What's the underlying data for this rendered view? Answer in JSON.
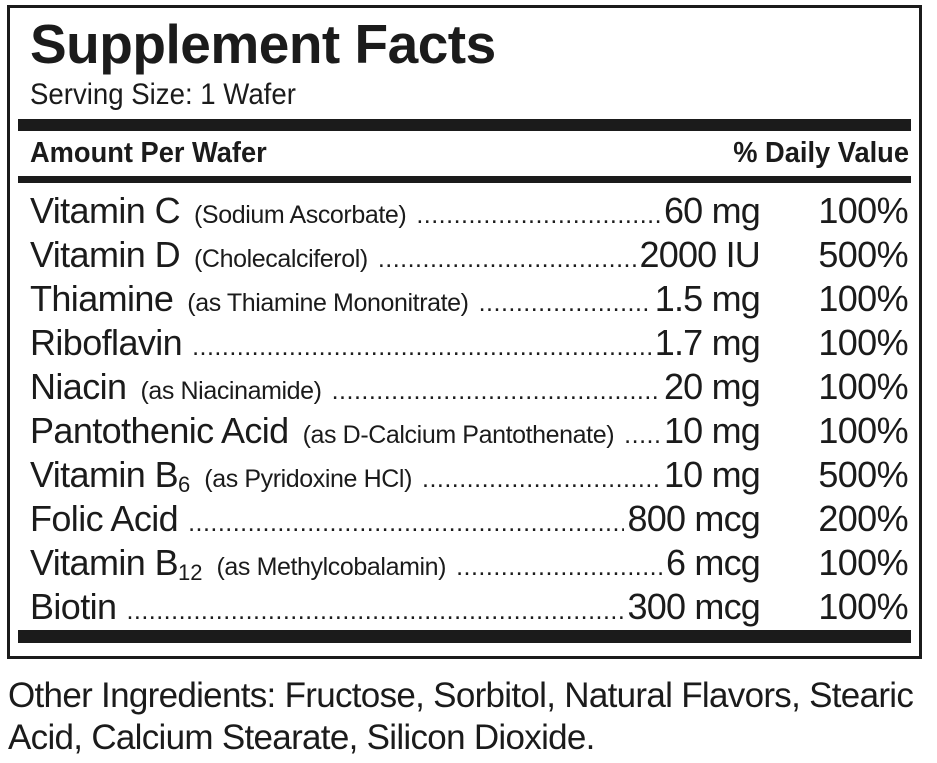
{
  "title": "Supplement Facts",
  "serving_size": "Serving Size:  1 Wafer",
  "header": {
    "amount_label": "Amount Per Wafer",
    "dv_label": "% Daily Value"
  },
  "nutrients": [
    {
      "name": "Vitamin C",
      "sub": "",
      "detail": "(Sodium Ascorbate)",
      "amount": "60 mg",
      "dv": "100%"
    },
    {
      "name": "Vitamin D",
      "sub": "",
      "detail": "(Cholecalciferol)",
      "amount": "2000 IU",
      "dv": "500%"
    },
    {
      "name": "Thiamine",
      "sub": "",
      "detail": "(as Thiamine Mononitrate)",
      "amount": "1.5 mg",
      "dv": "100%"
    },
    {
      "name": "Riboflavin",
      "sub": "",
      "detail": "",
      "amount": "1.7 mg",
      "dv": "100%"
    },
    {
      "name": "Niacin",
      "sub": "",
      "detail": "(as Niacinamide)",
      "amount": "20 mg",
      "dv": "100%"
    },
    {
      "name": "Pantothenic Acid",
      "sub": "",
      "detail": "(as D-Calcium Pantothenate)",
      "amount": "10 mg",
      "dv": "100%"
    },
    {
      "name": "Vitamin B",
      "sub": "6",
      "detail": "(as Pyridoxine HCl)",
      "amount": "10 mg",
      "dv": "500%"
    },
    {
      "name": "Folic Acid",
      "sub": "",
      "detail": "",
      "amount": "800 mcg",
      "dv": "200%"
    },
    {
      "name": "Vitamin B",
      "sub": "12",
      "detail": "(as Methylcobalamin)",
      "amount": "6 mcg",
      "dv": "100%"
    },
    {
      "name": "Biotin",
      "sub": "",
      "detail": "",
      "amount": "300 mcg",
      "dv": "100%"
    }
  ],
  "other_ingredients": "Other Ingredients: Fructose, Sorbitol, Natural Flavors, Stearic Acid, Calcium Stearate, Silicon Dioxide."
}
